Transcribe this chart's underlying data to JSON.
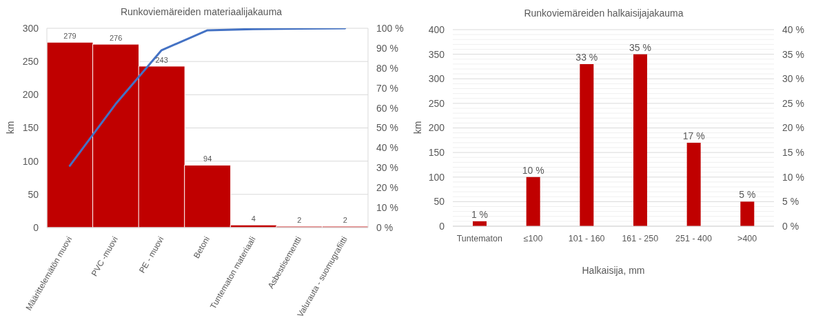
{
  "chart_data": [
    {
      "type": "bar",
      "title": "Runkoviemäreiden materiaalijakauma",
      "ylabel": "km",
      "categories": [
        "Määrittelemätön muovi",
        "PVC -muovi",
        "PE - muovi",
        "Betoni",
        "Tuntematon materiaali",
        "Asbestisementti",
        "Valurauta - suomugrafiitti"
      ],
      "series": [
        {
          "color": "#c00000",
          "values": [
            279,
            276,
            243,
            94,
            4,
            2,
            2
          ],
          "value_labels": [
            "279",
            "276",
            "243",
            "94",
            "4",
            "2",
            "2"
          ]
        },
        {
          "type": "line",
          "axis": "y2",
          "color": "#4472c4",
          "values": [
            31,
            62,
            89,
            99,
            99.6,
            99.8,
            100
          ]
        }
      ],
      "ylim": [
        0,
        300
      ],
      "yticks": [
        0,
        50,
        100,
        150,
        200,
        250,
        300
      ],
      "y2lim": [
        0,
        100
      ],
      "y2ticks": [
        {
          "value": 0,
          "label": "0 %"
        },
        {
          "value": 10,
          "label": "10 %"
        },
        {
          "value": 20,
          "label": "20 %"
        },
        {
          "value": 30,
          "label": "30 %"
        },
        {
          "value": 40,
          "label": "40 %"
        },
        {
          "value": 50,
          "label": "50 %"
        },
        {
          "value": 60,
          "label": "60 %"
        },
        {
          "value": 70,
          "label": "70 %"
        },
        {
          "value": 80,
          "label": "80 %"
        },
        {
          "value": 90,
          "label": "90 %"
        },
        {
          "value": 100,
          "label": "100 %"
        }
      ],
      "grid": "y"
    },
    {
      "type": "bar",
      "title": "Runkoviemäreiden halkaisijajakauma",
      "xlabel": "Halkaisija, mm",
      "ylabel": "km",
      "categories": [
        "Tuntematon",
        "≤100",
        "101 - 160",
        "161 - 250",
        "251 - 400",
        ">400"
      ],
      "series": [
        {
          "axis": "y2",
          "color": "#c00000",
          "values": [
            1,
            10,
            33,
            35,
            17,
            5
          ],
          "value_labels": [
            "1 %",
            "10 %",
            "33 %",
            "35 %",
            "17 %",
            "5 %"
          ]
        }
      ],
      "ylim": [
        0,
        400
      ],
      "yticks": [
        0,
        {
          "value": 10,
          "label": null
        },
        {
          "value": 20,
          "label": null
        },
        {
          "value": 30,
          "label": null
        },
        {
          "value": 40,
          "label": null
        },
        50,
        {
          "value": 60,
          "label": null
        },
        {
          "value": 70,
          "label": null
        },
        {
          "value": 80,
          "label": null
        },
        {
          "value": 90,
          "label": null
        },
        100,
        {
          "value": 110,
          "label": null
        },
        {
          "value": 120,
          "label": null
        },
        {
          "value": 130,
          "label": null
        },
        {
          "value": 140,
          "label": null
        },
        150,
        {
          "value": 160,
          "label": null
        },
        {
          "value": 170,
          "label": null
        },
        {
          "value": 180,
          "label": null
        },
        {
          "value": 190,
          "label": null
        },
        200,
        {
          "value": 210,
          "label": null
        },
        {
          "value": 220,
          "label": null
        },
        {
          "value": 230,
          "label": null
        },
        {
          "value": 240,
          "label": null
        },
        250,
        {
          "value": 260,
          "label": null
        },
        {
          "value": 270,
          "label": null
        },
        {
          "value": 280,
          "label": null
        },
        {
          "value": 290,
          "label": null
        },
        300,
        {
          "value": 310,
          "label": null
        },
        {
          "value": 320,
          "label": null
        },
        {
          "value": 330,
          "label": null
        },
        {
          "value": 340,
          "label": null
        },
        350,
        {
          "value": 360,
          "label": null
        },
        {
          "value": 370,
          "label": null
        },
        {
          "value": 380,
          "label": null
        },
        {
          "value": 390,
          "label": null
        },
        400
      ],
      "y2lim": [
        0,
        40
      ],
      "y2ticks": [
        {
          "value": 0,
          "label": "0 %"
        },
        {
          "value": 5,
          "label": "5 %"
        },
        {
          "value": 10,
          "label": "10 %"
        },
        {
          "value": 15,
          "label": "15 %"
        },
        {
          "value": 20,
          "label": "20 %"
        },
        {
          "value": 25,
          "label": "25 %"
        },
        {
          "value": 30,
          "label": "30 %"
        },
        {
          "value": 35,
          "label": "35 %"
        },
        {
          "value": 40,
          "label": "40 %"
        }
      ],
      "grid": "y"
    }
  ]
}
